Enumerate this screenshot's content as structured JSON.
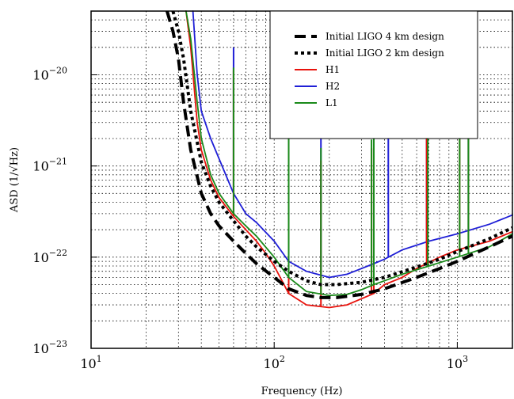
{
  "chart_data": {
    "type": "line",
    "title": "",
    "xlabel": "Frequency (Hz)",
    "ylabel": "ASD",
    "ylabel_unit": "1/√Hz",
    "x_scale": "log",
    "y_scale": "log",
    "xlim": [
      10,
      2000
    ],
    "ylim": [
      1e-23,
      5e-20
    ],
    "x_ticks": [
      {
        "value": 10,
        "base": "10",
        "exp": "1"
      },
      {
        "value": 100,
        "base": "10",
        "exp": "2"
      },
      {
        "value": 1000,
        "base": "10",
        "exp": "3"
      }
    ],
    "y_ticks": [
      {
        "value": 1e-23,
        "base": "10",
        "exp": "−23"
      },
      {
        "value": 1e-22,
        "base": "10",
        "exp": "−22"
      },
      {
        "value": 1e-21,
        "base": "10",
        "exp": "−21"
      },
      {
        "value": 1e-20,
        "base": "10",
        "exp": "−20"
      }
    ],
    "grid": true,
    "legend_position": "top-right",
    "series": [
      {
        "name": "Initial LIGO 4 km design",
        "color": "#000000",
        "style": "dashed",
        "x": [
          26,
          28,
          30,
          32,
          35,
          40,
          45,
          50,
          60,
          70,
          80,
          100,
          120,
          150,
          180,
          220,
          300,
          400,
          600,
          800,
          1000,
          1500,
          2000
        ],
        "y": [
          5e-20,
          3e-20,
          1.5e-20,
          5e-21,
          1.5e-21,
          5e-22,
          3e-22,
          2.2e-22,
          1.5e-22,
          1.1e-22,
          8.5e-23,
          6e-23,
          4.5e-23,
          3.8e-23,
          3.6e-23,
          3.6e-23,
          3.9e-23,
          4.5e-23,
          6e-23,
          7.5e-23,
          9e-23,
          1.3e-22,
          1.7e-22
        ]
      },
      {
        "name": "Initial LIGO 2 km design",
        "color": "#000000",
        "style": "dotted",
        "x": [
          28,
          30,
          32,
          35,
          40,
          45,
          50,
          60,
          70,
          80,
          100,
          120,
          150,
          180,
          220,
          300,
          400,
          600,
          800,
          1000,
          1500,
          2000
        ],
        "y": [
          5e-20,
          3e-20,
          1.5e-20,
          4e-21,
          1.1e-21,
          6e-22,
          4e-22,
          2.5e-22,
          1.7e-22,
          1.3e-22,
          9e-23,
          7e-23,
          5.5e-23,
          5e-23,
          5e-23,
          5.3e-23,
          6e-23,
          7.8e-23,
          9.5e-23,
          1.15e-22,
          1.6e-22,
          2.1e-22
        ]
      },
      {
        "name": "H1",
        "color": "#e8120c",
        "style": "solid",
        "x": [
          33,
          35,
          38,
          40,
          45,
          50,
          60,
          70,
          80,
          90,
          100,
          120,
          150,
          200,
          250,
          300,
          350,
          400,
          500,
          600,
          800,
          1000,
          1500,
          2000
        ],
        "y": [
          5e-20,
          2e-20,
          3e-21,
          1.5e-21,
          7e-22,
          4.5e-22,
          2.8e-22,
          2e-22,
          1.5e-22,
          1.1e-22,
          8e-23,
          4e-23,
          3e-23,
          2.8e-23,
          3e-23,
          3.5e-23,
          4e-23,
          5e-23,
          6e-23,
          7.5e-23,
          1e-22,
          1.2e-22,
          1.5e-22,
          1.9e-22
        ]
      },
      {
        "name": "H2",
        "color": "#1f1fd6",
        "style": "solid",
        "x": [
          36,
          38,
          40,
          45,
          50,
          60,
          70,
          80,
          100,
          120,
          150,
          200,
          250,
          300,
          350,
          400,
          500,
          700,
          1000,
          1500,
          2000
        ],
        "y": [
          5e-20,
          1e-20,
          4e-21,
          2e-21,
          1.2e-21,
          5e-22,
          3e-22,
          2.4e-22,
          1.5e-22,
          9e-23,
          7e-23,
          6e-23,
          6.5e-23,
          7.5e-23,
          8.5e-23,
          9.5e-23,
          1.2e-22,
          1.5e-22,
          1.8e-22,
          2.3e-22,
          2.9e-22
        ]
      },
      {
        "name": "L1",
        "color": "#1a8a1a",
        "style": "solid",
        "x": [
          33,
          35,
          38,
          40,
          45,
          50,
          60,
          70,
          80,
          100,
          120,
          150,
          200,
          250,
          300,
          350,
          400,
          500,
          700,
          1000,
          1500,
          2000
        ],
        "y": [
          5e-20,
          2.5e-20,
          5e-21,
          2e-21,
          8e-22,
          5e-22,
          3e-22,
          2.2e-22,
          1.7e-22,
          1e-22,
          6e-23,
          4.2e-23,
          3.8e-23,
          3.9e-23,
          4.4e-23,
          5e-23,
          5.5e-23,
          6.5e-23,
          8e-23,
          1e-22,
          1.3e-22,
          1.8e-22
        ]
      }
    ],
    "spikes": {
      "H1": [
        60,
        120,
        180,
        340,
        350,
        680,
        1030,
        1150
      ],
      "H2": [
        60,
        120,
        180,
        350,
        420,
        680,
        1150
      ],
      "L1": [
        60,
        120,
        180,
        340,
        350,
        690,
        1030,
        1150
      ]
    }
  }
}
